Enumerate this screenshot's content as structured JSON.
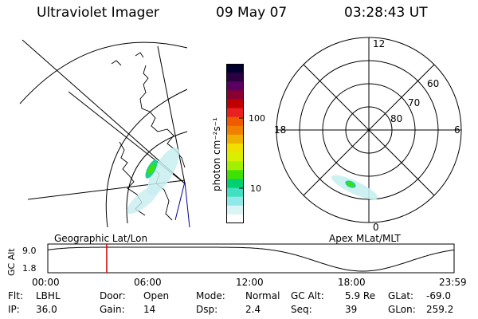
{
  "header": {
    "instrument": "Ultraviolet Imager",
    "date": "09 May 07",
    "time": "03:28:43 UT"
  },
  "colorbar": {
    "unit_label": "photon cm⁻²s⁻¹",
    "ticks": [
      "100",
      "10"
    ],
    "colors": [
      "#000030",
      "#2a0040",
      "#5a0060",
      "#8a0030",
      "#c00000",
      "#e82020",
      "#f05a00",
      "#f08000",
      "#f0b000",
      "#f0e000",
      "#d8f000",
      "#a0f000",
      "#40e000",
      "#00d070",
      "#40e0c0",
      "#90e8e8",
      "#d8f4f4",
      "#ffffff"
    ]
  },
  "geo_panel": {
    "label": "Geographic Lat/Lon"
  },
  "polar_panel": {
    "label": "Apex MLat/MLT",
    "mlt_labels": {
      "top": "12",
      "left": "18",
      "right": "6",
      "bottom": "0"
    },
    "lat_labels": [
      "60",
      "70",
      "80"
    ]
  },
  "altitude_plot": {
    "ylabel": "GC Alt",
    "yticks": [
      "9.0",
      "1.8"
    ],
    "xticks": [
      "00:00",
      "06:00",
      "12:00",
      "18:00",
      "23:59"
    ],
    "current_time_marker_hours": 3.48,
    "marker_color": "#d00000"
  },
  "info": {
    "row1": [
      {
        "label": "Flt:",
        "value": "LBHL"
      },
      {
        "label": "Door:",
        "value": "Open"
      },
      {
        "label": "Mode:",
        "value": "Normal"
      },
      {
        "label": "GC Alt:",
        "value": "5.9 Re"
      },
      {
        "label": "GLat:",
        "value": "-69.0"
      }
    ],
    "row2": [
      {
        "label": "IP:",
        "value": "36.0"
      },
      {
        "label": "Gain:",
        "value": "14"
      },
      {
        "label": "Dsp:",
        "value": "2.4"
      },
      {
        "label": "Seq:",
        "value": "39"
      },
      {
        "label": "GLon:",
        "value": "259.2"
      }
    ]
  }
}
